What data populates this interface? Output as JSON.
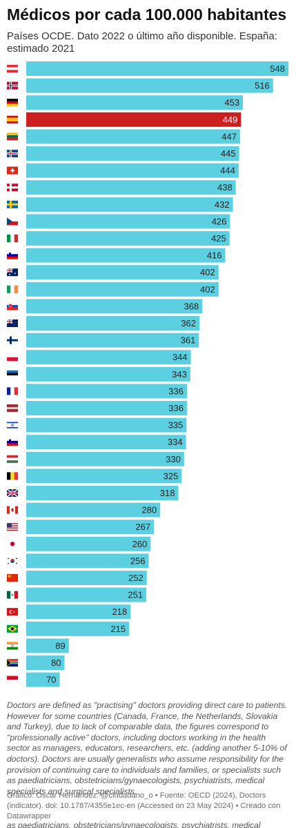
{
  "title": "Médicos por cada 100.000 habitantes",
  "subtitle": "Países OCDE. Dato 2022 o último año disponible. España: estimado 2021",
  "note": "Doctors are defined as \"practising\" doctors providing direct care to patients. However for some countries (Canada, France, the Netherlands, Slovakia and Turkey), due to lack of comparable data, the figures correspond to \"professionally active\" doctors, including doctors working in the health sector as managers, educators, researchers, etc. (adding another 5-10% of doctors). Doctors are usually generalists who assume responsibility for the provision of continuing care to individuals and families, or specialists such as paediatricians, obstetricians/gynaecologists, psychiatrists, medical specialists and surgical specialists.",
  "footer": {
    "credit": "Gráfico: Óscar Hernández. @ciudadano_o",
    "source": "Fuente: OECD (2024), Doctors (indicator). doi: 10.1787/4355e1ec-en (Accessed on 23 May 2024)",
    "created_with": "Creado con Datawrapper",
    "separator": " • "
  },
  "cutoff_text": "as paediatricians, obstetricians/gynaecologists, psychiatrists, medical",
  "colors": {
    "bar": "#5ccfe0",
    "highlight": "#cc1f1f",
    "value_text": "#222222",
    "highlight_text": "#ffffff"
  },
  "chart_data": {
    "type": "bar",
    "orientation": "horizontal",
    "title": "Médicos por cada 100.000 habitantes",
    "subtitle": "Países OCDE. Dato 2022 o último año disponible. España: estimado 2021",
    "categories": [
      "Austria",
      "Norway",
      "Germany",
      "Spain",
      "Lithuania",
      "Iceland",
      "Switzerland",
      "Denmark",
      "Sweden",
      "Czech Republic",
      "Italy",
      "Slovenia",
      "Australia",
      "Ireland",
      "Slovakia",
      "New Zealand",
      "Finland",
      "Poland",
      "Estonia",
      "France",
      "Latvia",
      "Israel",
      "Slovenia (2)",
      "Hungary",
      "Belgium",
      "United Kingdom",
      "Canada",
      "United States",
      "Japan",
      "South Korea",
      "China",
      "Mexico",
      "Turkey",
      "Brazil",
      "India",
      "South Africa",
      "Indonesia"
    ],
    "values": [
      548,
      516,
      453,
      449,
      447,
      445,
      444,
      438,
      432,
      426,
      425,
      416,
      402,
      402,
      368,
      362,
      361,
      344,
      343,
      336,
      336,
      335,
      334,
      330,
      325,
      318,
      280,
      267,
      260,
      256,
      252,
      251,
      218,
      215,
      89,
      80,
      70
    ],
    "flag_icons": [
      "flag-austria",
      "flag-norway",
      "flag-germany",
      "flag-spain",
      "flag-lithuania",
      "flag-iceland",
      "flag-switzerland",
      "flag-denmark",
      "flag-sweden",
      "flag-czech-republic",
      "flag-italy",
      "flag-slovenia",
      "flag-australia",
      "flag-ireland",
      "flag-slovakia",
      "flag-new-zealand",
      "flag-finland",
      "flag-poland",
      "flag-estonia",
      "flag-france",
      "flag-latvia",
      "flag-israel",
      "flag-slovenia",
      "flag-hungary",
      "flag-belgium",
      "flag-united-kingdom",
      "flag-canada",
      "flag-united-states",
      "flag-japan",
      "flag-south-korea",
      "flag-china",
      "flag-mexico",
      "flag-turkey",
      "flag-brazil",
      "flag-india",
      "flag-south-africa",
      "flag-indonesia"
    ],
    "highlight_index": 3,
    "xlim": [
      0,
      548
    ],
    "grid": false,
    "legend": "none",
    "value_labels": "inside-end"
  }
}
